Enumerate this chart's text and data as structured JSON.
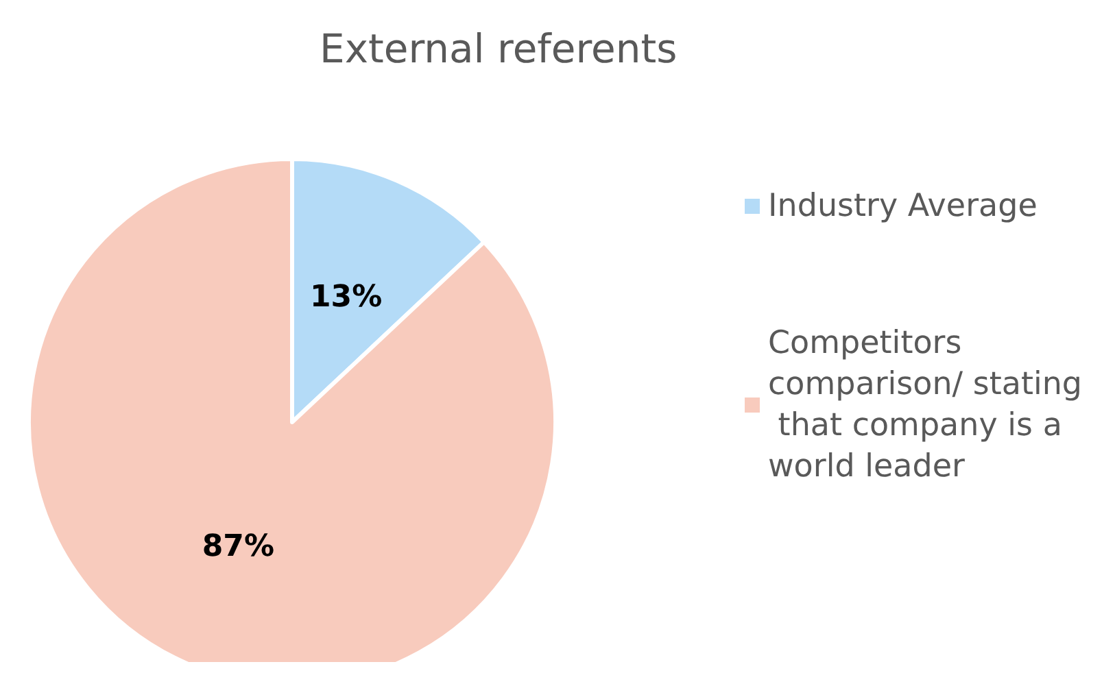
{
  "chart_data": {
    "type": "pie",
    "title": "External referents",
    "categories": [
      "Industry Average",
      "Competitors comparison/ stating that company is a world leader"
    ],
    "values": [
      13,
      87
    ],
    "colors": [
      "#b4dbf7",
      "#f8cbbd"
    ],
    "value_labels": [
      "13%",
      "87%"
    ],
    "legend": "right"
  }
}
